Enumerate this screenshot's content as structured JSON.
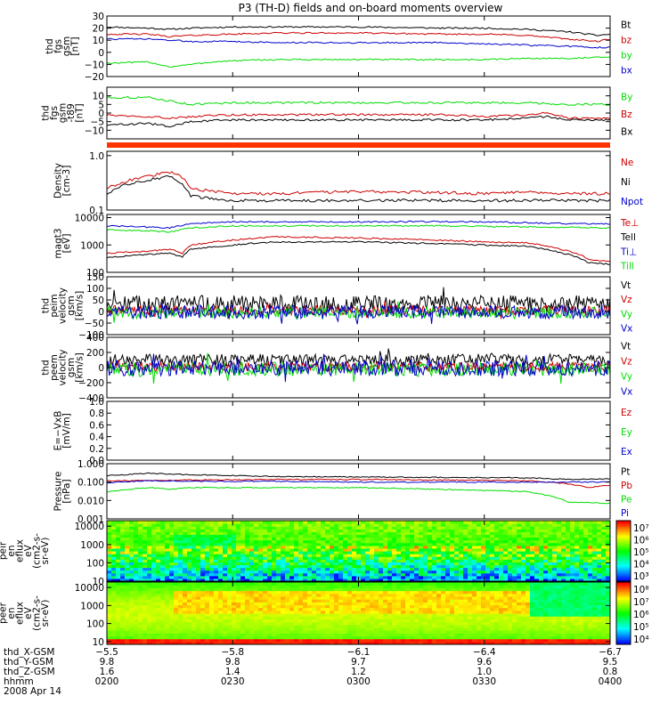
{
  "title": "P3 (TH-D) fields and on-board moments overview",
  "colors": {
    "black": "#000000",
    "red": "#cc0000",
    "green": "#00dd00",
    "blue": "#0000cc",
    "orange": "#ff3300"
  },
  "chart_data": [
    {
      "id": "p1",
      "type": "line",
      "ylabel": [
        "thd",
        "fgs",
        "gsm",
        "[nT]"
      ],
      "ylim": [
        -20,
        30
      ],
      "yticks": [
        "30",
        "20",
        "10",
        "0",
        "−10",
        "−20"
      ],
      "ytick_values": [
        30,
        20,
        10,
        0,
        -10,
        -20
      ],
      "legend": [
        {
          "name": "Bt",
          "color": "black"
        },
        {
          "name": "bz",
          "color": "red"
        },
        {
          "name": "by",
          "color": "green"
        },
        {
          "name": "bx",
          "color": "blue"
        }
      ],
      "series": [
        {
          "name": "Bt",
          "color": "black",
          "x": [
            0,
            10,
            15,
            20,
            30,
            40,
            60,
            80,
            90,
            100,
            110,
            117,
            120
          ],
          "y": [
            21,
            20,
            19,
            20,
            21,
            21,
            21,
            20,
            20,
            19,
            17,
            14,
            15
          ]
        },
        {
          "name": "bz",
          "color": "red",
          "x": [
            0,
            10,
            15,
            20,
            30,
            40,
            60,
            80,
            90,
            100,
            110,
            117,
            120
          ],
          "y": [
            15,
            15,
            13,
            14,
            15,
            16,
            16,
            15,
            15,
            14,
            11,
            9,
            11
          ]
        },
        {
          "name": "bx",
          "color": "blue",
          "x": [
            0,
            10,
            15,
            20,
            30,
            40,
            60,
            80,
            90,
            100,
            110,
            117,
            120
          ],
          "y": [
            11,
            11,
            10,
            9,
            9,
            8,
            8,
            8,
            7,
            6,
            5,
            4,
            4
          ]
        },
        {
          "name": "by",
          "color": "green",
          "x": [
            0,
            10,
            15,
            20,
            25,
            30,
            40,
            60,
            80,
            90,
            100,
            110,
            120
          ],
          "y": [
            -9,
            -8,
            -12,
            -10,
            -8,
            -7,
            -6,
            -6,
            -6,
            -6,
            -5,
            -5,
            -4
          ]
        }
      ]
    },
    {
      "id": "p2",
      "type": "line",
      "ylabel": [
        "thd",
        "fgs",
        "gsm",
        "-t89",
        "[nT]"
      ],
      "ylim": [
        -15,
        15
      ],
      "yticks": [
        "10",
        "5",
        "0",
        "−5",
        "−10"
      ],
      "ytick_values": [
        10,
        5,
        0,
        -5,
        -10
      ],
      "legend": [
        {
          "name": "By",
          "color": "green"
        },
        {
          "name": "Bz",
          "color": "red"
        },
        {
          "name": "Bx",
          "color": "black"
        }
      ],
      "series": [
        {
          "name": "By",
          "color": "green",
          "x": [
            0,
            10,
            15,
            20,
            30,
            40,
            60,
            80,
            90,
            100,
            110,
            120
          ],
          "y": [
            9,
            9,
            7,
            5,
            6,
            6,
            6,
            6,
            6,
            6,
            5,
            5
          ]
        },
        {
          "name": "Bz",
          "color": "red",
          "x": [
            0,
            10,
            15,
            20,
            30,
            40,
            60,
            80,
            90,
            100,
            105,
            110,
            120
          ],
          "y": [
            -1,
            -2,
            -3,
            -2,
            -1,
            -1,
            -1,
            -1,
            -2,
            -1,
            0,
            -3,
            -3
          ]
        },
        {
          "name": "Bx",
          "color": "black",
          "x": [
            0,
            10,
            15,
            20,
            30,
            40,
            60,
            80,
            90,
            100,
            105,
            110,
            120
          ],
          "y": [
            -7,
            -6,
            -8,
            -5,
            -4,
            -4,
            -4,
            -4,
            -4,
            -3,
            -2,
            -4,
            -4
          ]
        }
      ]
    },
    {
      "id": "p3",
      "type": "line",
      "ylabel": [
        "Density",
        "[cm-3]"
      ],
      "yscale": "log",
      "ylim": [
        0.1,
        1.2
      ],
      "yticks": [
        "1.0",
        "0.1"
      ],
      "ytick_values": [
        1.0,
        0.1
      ],
      "legend": [
        {
          "name": "Ne",
          "color": "red"
        },
        {
          "name": "Ni",
          "color": "black"
        },
        {
          "name": "Npot",
          "color": "blue"
        }
      ],
      "series": [
        {
          "name": "Ne",
          "color": "red",
          "x": [
            0,
            5,
            10,
            15,
            18,
            20,
            25,
            30,
            40,
            60,
            80,
            90,
            100,
            110,
            120
          ],
          "y": [
            0.25,
            0.35,
            0.42,
            0.5,
            0.4,
            0.25,
            0.22,
            0.2,
            0.2,
            0.22,
            0.21,
            0.2,
            0.22,
            0.2,
            0.2
          ]
        },
        {
          "name": "Ni",
          "color": "black",
          "x": [
            0,
            5,
            10,
            15,
            18,
            20,
            25,
            30,
            40,
            60,
            80,
            90,
            100,
            110,
            120
          ],
          "y": [
            0.2,
            0.3,
            0.36,
            0.42,
            0.3,
            0.18,
            0.16,
            0.15,
            0.15,
            0.15,
            0.15,
            0.15,
            0.15,
            0.15,
            0.15
          ]
        }
      ]
    },
    {
      "id": "p4",
      "type": "line",
      "ylabel": [
        "magt3",
        "[eV]"
      ],
      "yscale": "log",
      "ylim": [
        100,
        13000
      ],
      "yticks": [
        "10000",
        "1000",
        "100"
      ],
      "ytick_values": [
        10000,
        1000,
        100
      ],
      "legend": [
        {
          "name": "Te⊥",
          "color": "red"
        },
        {
          "name": "Tell",
          "color": "black"
        },
        {
          "name": "Ti⊥",
          "color": "blue"
        },
        {
          "name": "Till",
          "color": "green"
        }
      ],
      "series": [
        {
          "name": "Ti⊥",
          "color": "blue",
          "x": [
            0,
            10,
            15,
            20,
            30,
            40,
            60,
            80,
            90,
            100,
            110,
            120
          ],
          "y": [
            5000,
            4500,
            4200,
            6000,
            7000,
            7000,
            7000,
            7200,
            7000,
            6500,
            6000,
            6000
          ]
        },
        {
          "name": "Till",
          "color": "green",
          "x": [
            0,
            10,
            15,
            20,
            30,
            40,
            60,
            80,
            90,
            100,
            110,
            120
          ],
          "y": [
            3500,
            3300,
            3000,
            4200,
            5000,
            5000,
            5000,
            5000,
            4800,
            4600,
            4400,
            4200
          ]
        },
        {
          "name": "Te⊥",
          "color": "red",
          "x": [
            0,
            10,
            15,
            18,
            20,
            30,
            40,
            60,
            80,
            90,
            100,
            110,
            115,
            120
          ],
          "y": [
            500,
            600,
            700,
            500,
            1000,
            1500,
            2000,
            1800,
            1500,
            1300,
            1200,
            600,
            300,
            250
          ]
        },
        {
          "name": "Tell",
          "color": "black",
          "x": [
            0,
            10,
            15,
            18,
            20,
            30,
            40,
            60,
            80,
            90,
            100,
            110,
            115,
            120
          ],
          "y": [
            350,
            450,
            500,
            350,
            700,
            1000,
            1300,
            1300,
            1100,
            1000,
            900,
            450,
            220,
            200
          ]
        }
      ]
    },
    {
      "id": "p5",
      "type": "line",
      "ylabel": [
        "thd",
        "peim",
        "velocity",
        "gsm",
        "[km/s]"
      ],
      "ylim": [
        -100,
        150
      ],
      "yticks": [
        "150",
        "100",
        "50",
        "0",
        "−50",
        "−100"
      ],
      "ytick_values": [
        150,
        100,
        50,
        0,
        -50,
        -100
      ],
      "legend": [
        {
          "name": "Vt",
          "color": "black"
        },
        {
          "name": "Vz",
          "color": "red"
        },
        {
          "name": "Vy",
          "color": "green"
        },
        {
          "name": "Vx",
          "color": "blue"
        }
      ],
      "series": [
        {
          "name": "Vt",
          "color": "black",
          "level": 35,
          "amp": 35
        },
        {
          "name": "Vz",
          "color": "red",
          "level": 5,
          "amp": 20
        },
        {
          "name": "Vy",
          "color": "green",
          "level": -5,
          "amp": 25
        },
        {
          "name": "Vx",
          "color": "blue",
          "level": -2,
          "amp": 30
        }
      ]
    },
    {
      "id": "p6",
      "type": "line",
      "ylabel": [
        "thd",
        "peem",
        "velocity",
        "gsm",
        "[km/s]"
      ],
      "ylim": [
        -400,
        400
      ],
      "yticks": [
        "400",
        "200",
        "0",
        "−200",
        "−400"
      ],
      "ytick_values": [
        400,
        200,
        0,
        -200,
        -400
      ],
      "legend": [
        {
          "name": "Vt",
          "color": "black"
        },
        {
          "name": "Vz",
          "color": "red"
        },
        {
          "name": "Vy",
          "color": "green"
        },
        {
          "name": "Vx",
          "color": "blue"
        }
      ],
      "series": [
        {
          "name": "Vt",
          "color": "black",
          "level": 100,
          "amp": 80
        },
        {
          "name": "Vz",
          "color": "red",
          "level": 10,
          "amp": 60
        },
        {
          "name": "Vy",
          "color": "green",
          "level": -20,
          "amp": 90
        },
        {
          "name": "Vx",
          "color": "blue",
          "level": -10,
          "amp": 100
        }
      ]
    },
    {
      "id": "p7",
      "type": "line",
      "ylabel": [
        "E=−VxB",
        "[mV/m]"
      ],
      "ylim": [
        0,
        1.0
      ],
      "yticks": [
        "1.0",
        "0.8",
        "0.6",
        "0.4",
        "0.2",
        "0.0"
      ],
      "ytick_values": [
        1.0,
        0.8,
        0.6,
        0.4,
        0.2,
        0.0
      ],
      "legend": [
        {
          "name": "Ez",
          "color": "red"
        },
        {
          "name": "Ey",
          "color": "green"
        },
        {
          "name": "Ex",
          "color": "blue"
        }
      ],
      "series": []
    },
    {
      "id": "p8",
      "type": "line",
      "ylabel": [
        "Pressure",
        "[nPa]"
      ],
      "yscale": "log",
      "ylim": [
        0.001,
        1.0
      ],
      "yticks": [
        "1.000",
        "0.100",
        "0.010",
        "0.001"
      ],
      "ytick_values": [
        1.0,
        0.1,
        0.01,
        0.001
      ],
      "legend": [
        {
          "name": "Pt",
          "color": "black"
        },
        {
          "name": "Pb",
          "color": "red"
        },
        {
          "name": "Pe",
          "color": "green"
        },
        {
          "name": "Pi",
          "color": "blue"
        }
      ],
      "series": [
        {
          "name": "Pt",
          "color": "black",
          "x": [
            0,
            10,
            20,
            40,
            60,
            80,
            100,
            110,
            120
          ],
          "y": [
            0.22,
            0.3,
            0.25,
            0.2,
            0.19,
            0.18,
            0.17,
            0.14,
            0.15
          ]
        },
        {
          "name": "Pb",
          "color": "red",
          "x": [
            0,
            10,
            20,
            40,
            60,
            80,
            100,
            110,
            115,
            120
          ],
          "y": [
            0.12,
            0.12,
            0.13,
            0.14,
            0.14,
            0.13,
            0.12,
            0.08,
            0.05,
            0.07
          ]
        },
        {
          "name": "Pi",
          "color": "blue",
          "x": [
            0,
            10,
            20,
            40,
            60,
            80,
            100,
            110,
            120
          ],
          "y": [
            0.09,
            0.12,
            0.11,
            0.11,
            0.1,
            0.1,
            0.1,
            0.1,
            0.1
          ]
        },
        {
          "name": "Pe",
          "color": "green",
          "x": [
            0,
            10,
            15,
            20,
            25,
            40,
            60,
            80,
            100,
            110,
            120
          ],
          "y": [
            0.03,
            0.05,
            0.04,
            0.05,
            0.05,
            0.05,
            0.05,
            0.04,
            0.03,
            0.008,
            0.007
          ]
        }
      ]
    },
    {
      "id": "p9",
      "type": "heatmap",
      "ylabel": [
        "thd",
        "peir",
        "en",
        "eflux",
        "eV",
        "(cm2-s-",
        "sr-eV)"
      ],
      "yscale": "log",
      "ylim": [
        10,
        20000
      ],
      "yticks": [
        "10000",
        "1000",
        "100",
        "10"
      ],
      "ytick_values": [
        10000,
        1000,
        100,
        10
      ],
      "colorbar": {
        "scale": "log",
        "range": [
          1000,
          10000000
        ],
        "labels": [
          "10⁷",
          "10⁶",
          "10⁵",
          "10⁴",
          "10³"
        ]
      }
    },
    {
      "id": "p10",
      "type": "heatmap",
      "ylabel": [
        "thd",
        "peer",
        "en",
        "eflux",
        "eV",
        "(cm2-s-",
        "sr-eV)"
      ],
      "yscale": "log",
      "ylim": [
        7,
        20000
      ],
      "yticks": [
        "10000",
        "1000",
        "100",
        "10"
      ],
      "ytick_values": [
        10000,
        1000,
        100,
        10
      ],
      "colorbar": {
        "scale": "log",
        "range": [
          3000,
          300000000
        ],
        "labels": [
          "10⁸",
          "10⁷",
          "10⁶",
          "10⁵",
          "10⁴"
        ]
      }
    }
  ],
  "x_axis": {
    "tick_minutes": [
      0,
      30,
      60,
      90,
      120
    ],
    "rows": [
      {
        "label": "thd_X-GSM",
        "values": [
          "−5.5",
          "−5.8",
          "−6.1",
          "−6.4",
          "−6.7"
        ]
      },
      {
        "label": "thd_Y-GSM",
        "values": [
          "9.8",
          "9.8",
          "9.7",
          "9.6",
          "9.5"
        ]
      },
      {
        "label": "thd_Z-GSM",
        "values": [
          "1.6",
          "1.4",
          "1.2",
          "1.0",
          "0.8"
        ]
      },
      {
        "label": "hhmm",
        "values": [
          "0200",
          "0230",
          "0300",
          "0330",
          "0400"
        ]
      }
    ],
    "date": "2008 Apr 14"
  }
}
